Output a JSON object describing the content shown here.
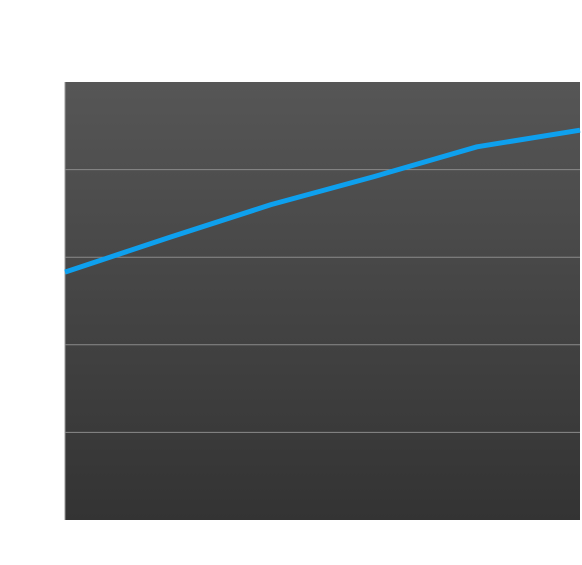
{
  "chart_data": {
    "type": "line",
    "x": [
      0,
      1,
      2,
      3,
      4,
      5
    ],
    "series": [
      {
        "color": "#0ea0ee",
        "values": [
          2.83,
          3.22,
          3.6,
          3.92,
          4.26,
          4.45
        ]
      }
    ],
    "xlim": [
      0,
      5
    ],
    "ylim": [
      0,
      5
    ],
    "yticks": [
      1,
      2,
      3,
      4
    ],
    "grid": true
  }
}
